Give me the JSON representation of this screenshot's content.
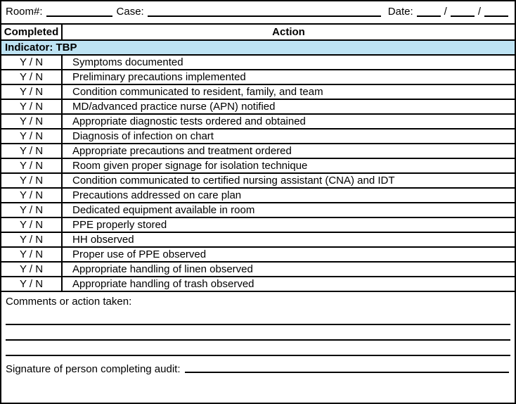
{
  "header": {
    "room_label": "Room#:",
    "case_label": "Case:",
    "date_label": "Date:",
    "date_separator": "/"
  },
  "table": {
    "columns": [
      "Completed",
      "Action"
    ],
    "indicator": "Indicator: TBP",
    "yn_label": "Y / N",
    "rows": [
      "Symptoms documented",
      "Preliminary precautions implemented",
      "Condition communicated to resident, family, and team",
      "MD/advanced practice nurse (APN) notified",
      "Appropriate diagnostic tests ordered and obtained",
      "Diagnosis of infection on chart",
      "Appropriate precautions and treatment ordered",
      "Room given proper signage for isolation technique",
      "Condition communicated to certified nursing assistant (CNA) and IDT",
      "Precautions addressed on care plan",
      "Dedicated equipment available in room",
      "PPE properly stored",
      "HH observed",
      "Proper use of PPE observed",
      "Appropriate handling of linen observed",
      "Appropriate handling of trash observed"
    ]
  },
  "footer": {
    "comments_label": "Comments or action taken:",
    "signature_label": "Signature of person completing audit:"
  },
  "colors": {
    "indicator_bg": "#BEE3F3",
    "border": "#000000"
  }
}
